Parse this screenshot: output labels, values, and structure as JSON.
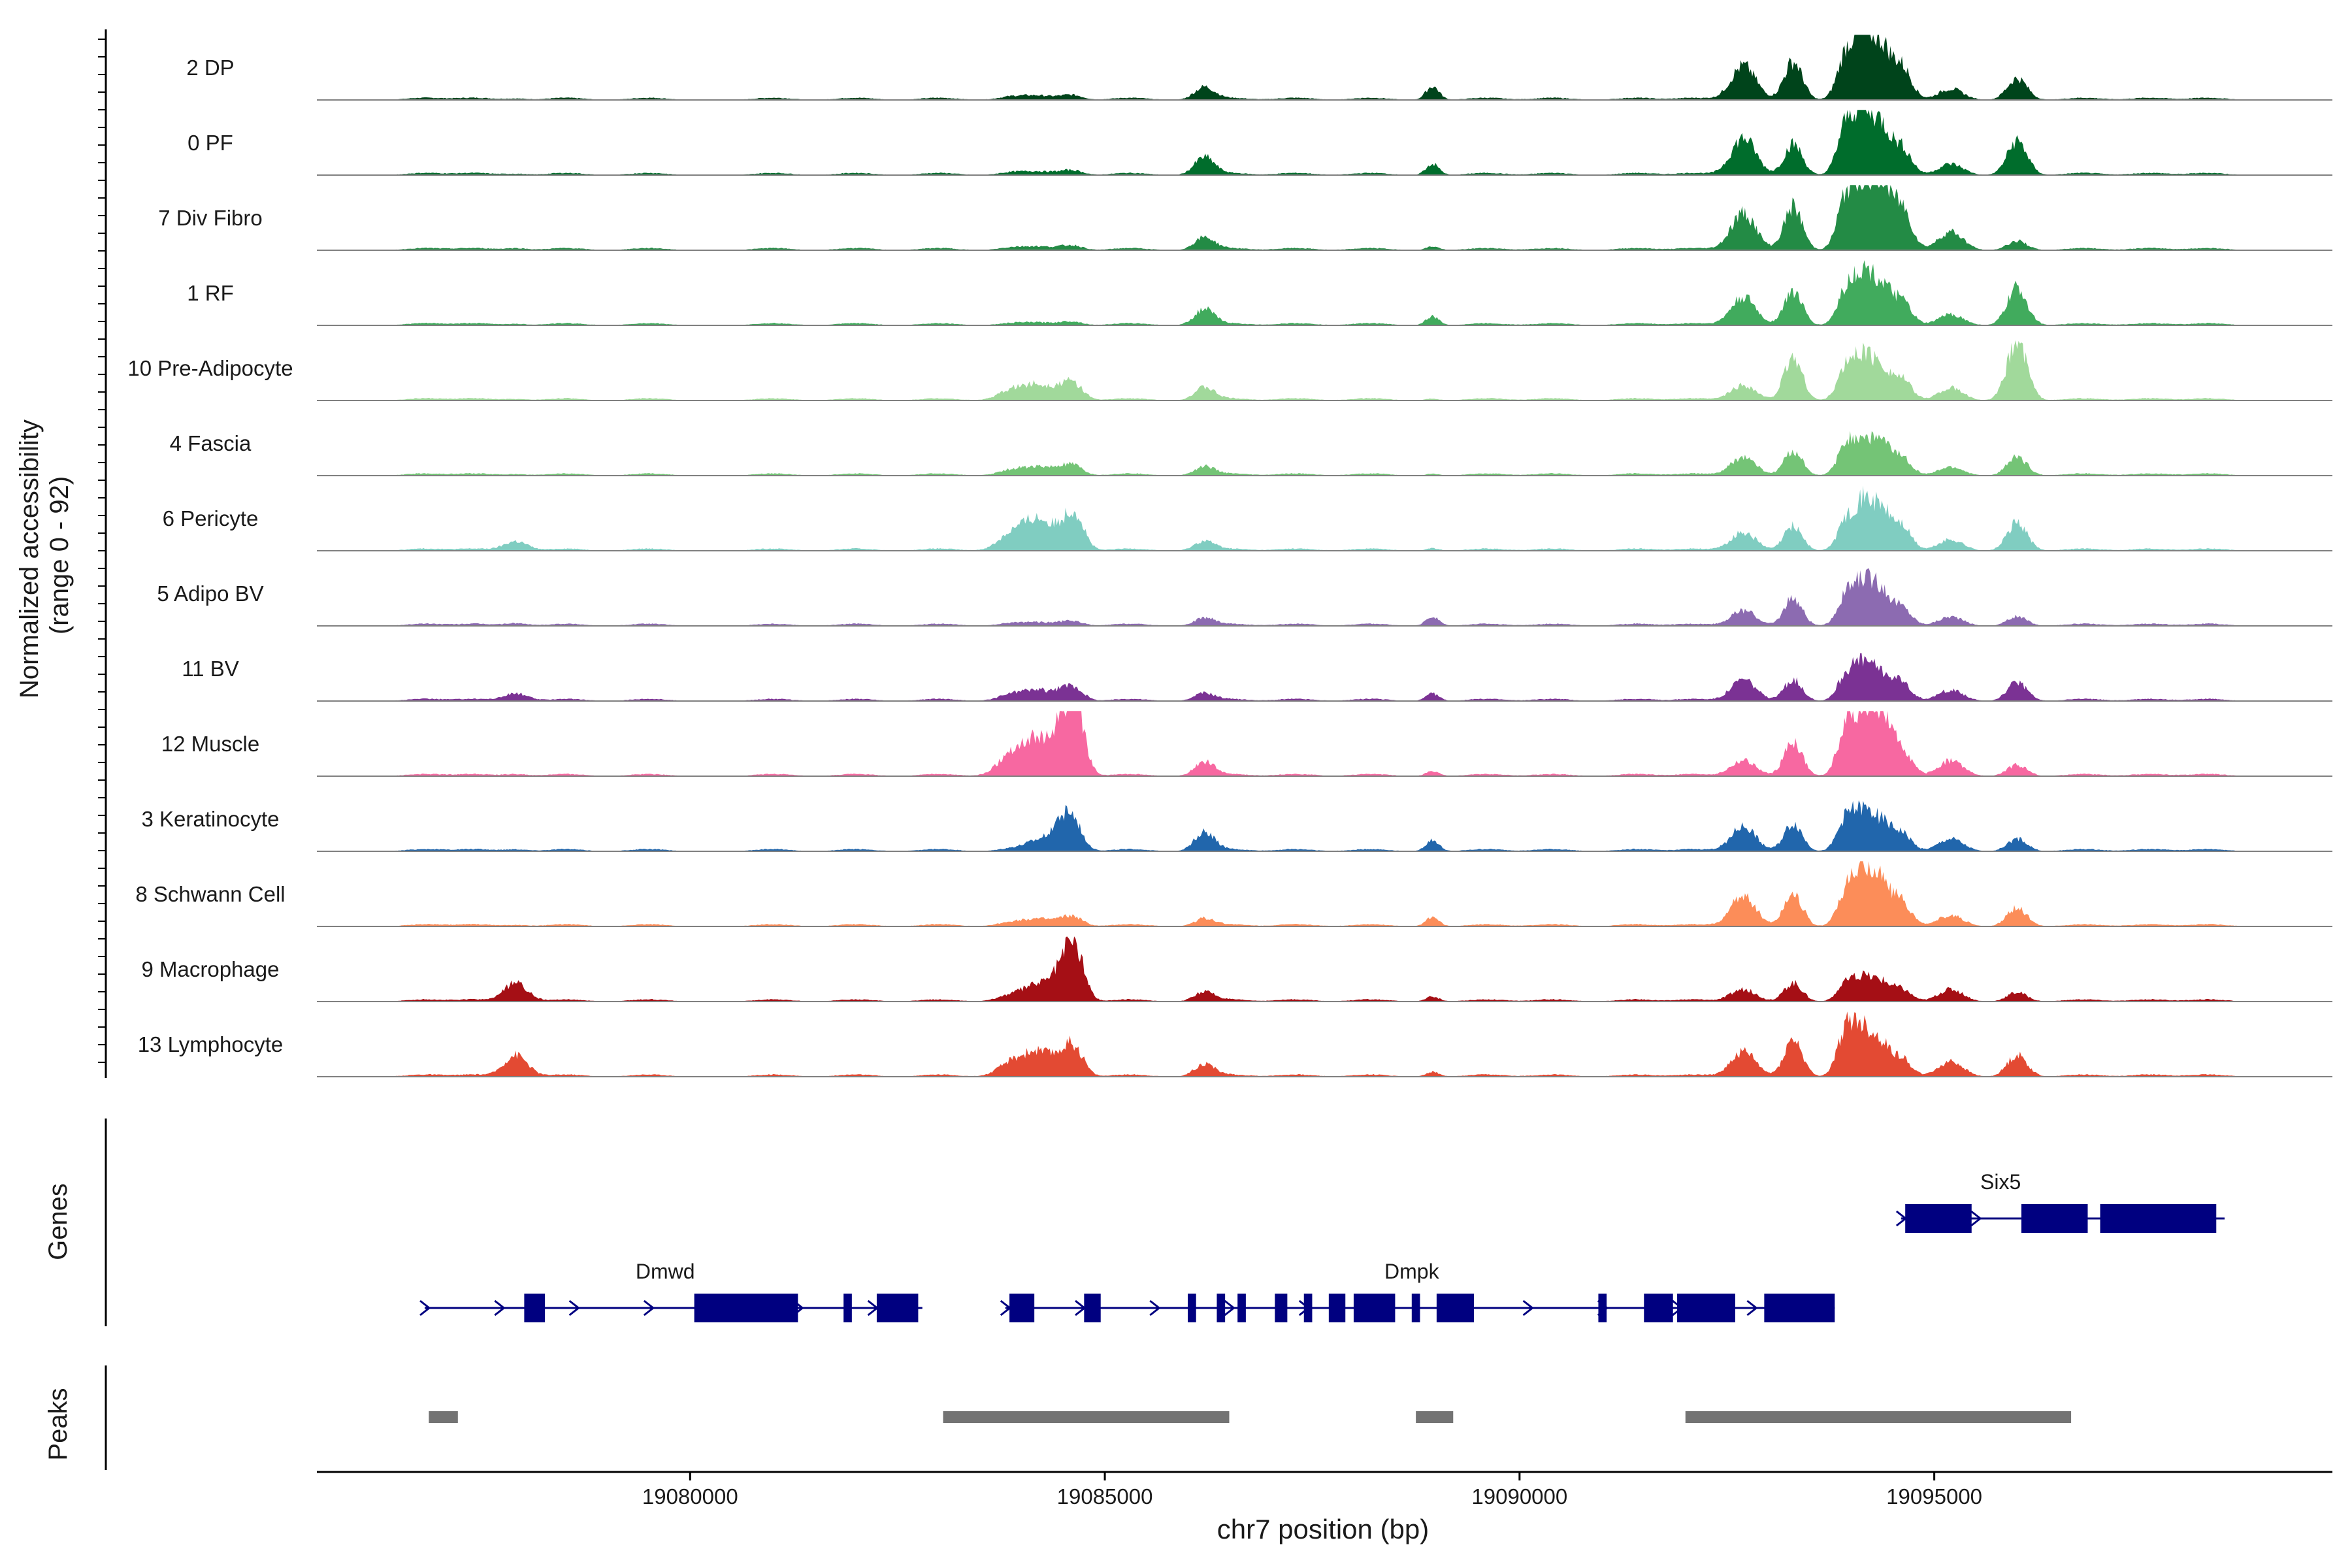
{
  "chart_data": {
    "type": "area",
    "title": "",
    "ylabel_lines": [
      "Normalized accessibility",
      "(range 0 - 92)"
    ],
    "y_range": [
      0,
      92
    ],
    "xlabel": "chr7 position (bp)",
    "xlim": [
      19075500,
      19099800
    ],
    "xticks": [
      19080000,
      19085000,
      19090000,
      19095000
    ],
    "xtick_labels": [
      "19080000",
      "19085000",
      "19090000",
      "19095000"
    ],
    "peak_centers": [
      {
        "pos": 19077900,
        "w": 140
      },
      {
        "pos": 19083900,
        "w": 170
      },
      {
        "pos": 19084200,
        "w": 150
      },
      {
        "pos": 19084500,
        "w": 130
      },
      {
        "pos": 19084650,
        "w": 110
      },
      {
        "pos": 19086200,
        "w": 120
      },
      {
        "pos": 19088950,
        "w": 80
      },
      {
        "pos": 19092700,
        "w": 150
      },
      {
        "pos": 19093300,
        "w": 110
      },
      {
        "pos": 19093950,
        "w": 110
      },
      {
        "pos": 19094150,
        "w": 100
      },
      {
        "pos": 19094350,
        "w": 110
      },
      {
        "pos": 19094600,
        "w": 120
      },
      {
        "pos": 19095200,
        "w": 150
      },
      {
        "pos": 19096000,
        "w": 120
      }
    ],
    "tracks": [
      {
        "name": "2 DP",
        "color": "#00441b",
        "peaks": [
          0.02,
          0.06,
          0.06,
          0.05,
          0.05,
          0.2,
          0.22,
          0.55,
          0.62,
          0.78,
          0.85,
          0.82,
          0.55,
          0.18,
          0.35
        ]
      },
      {
        "name": "0 PF",
        "color": "#006d2c",
        "peaks": [
          0.02,
          0.05,
          0.05,
          0.05,
          0.05,
          0.28,
          0.18,
          0.6,
          0.5,
          0.85,
          0.8,
          0.75,
          0.45,
          0.18,
          0.55
        ]
      },
      {
        "name": "7 Div Fibro",
        "color": "#238b45",
        "peaks": [
          0.03,
          0.05,
          0.05,
          0.05,
          0.05,
          0.2,
          0.06,
          0.6,
          0.7,
          0.9,
          0.85,
          1.0,
          0.7,
          0.3,
          0.15
        ]
      },
      {
        "name": "1 RF",
        "color": "#41ab5d",
        "peaks": [
          0.02,
          0.04,
          0.04,
          0.04,
          0.04,
          0.25,
          0.14,
          0.45,
          0.55,
          0.6,
          0.7,
          0.6,
          0.4,
          0.18,
          0.6
        ]
      },
      {
        "name": "10 Pre-Adipocyte",
        "color": "#a1d99b",
        "peaks": [
          0.02,
          0.18,
          0.22,
          0.2,
          0.18,
          0.2,
          0.03,
          0.25,
          0.7,
          0.55,
          0.6,
          0.5,
          0.35,
          0.2,
          0.95
        ]
      },
      {
        "name": "4 Fascia",
        "color": "#74c476",
        "peaks": [
          0.02,
          0.1,
          0.12,
          0.12,
          0.1,
          0.14,
          0.03,
          0.3,
          0.4,
          0.5,
          0.45,
          0.5,
          0.3,
          0.14,
          0.3
        ]
      },
      {
        "name": "6 Pericyte",
        "color": "#80cdc1",
        "peaks": [
          0.15,
          0.3,
          0.45,
          0.3,
          0.48,
          0.15,
          0.04,
          0.3,
          0.4,
          0.5,
          0.65,
          0.62,
          0.4,
          0.18,
          0.45
        ]
      },
      {
        "name": "5 Adipo BV",
        "color": "#8c6bb1",
        "peaks": [
          0.04,
          0.05,
          0.05,
          0.05,
          0.05,
          0.12,
          0.15,
          0.25,
          0.45,
          0.5,
          0.6,
          0.55,
          0.3,
          0.15,
          0.15
        ]
      },
      {
        "name": "11 BV",
        "color": "#7b3294",
        "peaks": [
          0.12,
          0.12,
          0.15,
          0.15,
          0.15,
          0.12,
          0.12,
          0.35,
          0.35,
          0.45,
          0.5,
          0.42,
          0.3,
          0.18,
          0.3
        ]
      },
      {
        "name": "12 Muscle",
        "color": "#f768a1",
        "peaks": [
          0.03,
          0.4,
          0.5,
          0.7,
          0.9,
          0.22,
          0.08,
          0.25,
          0.55,
          0.8,
          0.8,
          0.95,
          0.45,
          0.25,
          0.18
        ]
      },
      {
        "name": "3 Keratinocyte",
        "color": "#2166ac",
        "peaks": [
          0.03,
          0.05,
          0.15,
          0.5,
          0.25,
          0.3,
          0.18,
          0.4,
          0.45,
          0.55,
          0.5,
          0.45,
          0.3,
          0.2,
          0.2
        ]
      },
      {
        "name": "8 Schwann Cell",
        "color": "#fc8d59",
        "peaks": [
          0.02,
          0.08,
          0.1,
          0.1,
          0.1,
          0.12,
          0.15,
          0.5,
          0.55,
          0.6,
          0.75,
          0.7,
          0.4,
          0.18,
          0.3
        ]
      },
      {
        "name": "9 Macrophage",
        "color": "#a50f15",
        "peaks": [
          0.3,
          0.12,
          0.25,
          0.5,
          0.7,
          0.15,
          0.08,
          0.2,
          0.3,
          0.3,
          0.3,
          0.3,
          0.2,
          0.2,
          0.15
        ]
      },
      {
        "name": "13 Lymphocyte",
        "color": "#e34a33",
        "peaks": [
          0.35,
          0.25,
          0.35,
          0.3,
          0.35,
          0.2,
          0.08,
          0.4,
          0.6,
          0.8,
          0.6,
          0.5,
          0.3,
          0.25,
          0.35
        ]
      }
    ],
    "genes_label": "Genes",
    "genes": [
      {
        "name": "Dmwd",
        "start": 19076800,
        "end": 19082800,
        "row": 2,
        "label_pos": 19079700,
        "exons": [
          [
            19078000,
            19078250
          ],
          [
            19080050,
            19081300
          ],
          [
            19081850,
            19081950
          ],
          [
            19082250,
            19082750
          ]
        ]
      },
      {
        "name": "Dmpk",
        "start": 19083800,
        "end": 19093800,
        "row": 2,
        "label_pos": 19088700,
        "exons": [
          [
            19083850,
            19084150
          ],
          [
            19084750,
            19084950
          ],
          [
            19086000,
            19086100
          ],
          [
            19086350,
            19086450
          ],
          [
            19086600,
            19086700
          ],
          [
            19087050,
            19087200
          ],
          [
            19087400,
            19087500
          ],
          [
            19087700,
            19087900
          ],
          [
            19088000,
            19088500
          ],
          [
            19088700,
            19088800
          ],
          [
            19089000,
            19089450
          ],
          [
            19090950,
            19091050
          ],
          [
            19091500,
            19091850
          ],
          [
            19091900,
            19092600
          ],
          [
            19092950,
            19093800
          ]
        ]
      },
      {
        "name": "Six5",
        "start": 19094600,
        "end": 19098500,
        "row": 1,
        "label_pos": 19095800,
        "exons": [
          [
            19094650,
            19095450
          ],
          [
            19096050,
            19096850
          ],
          [
            19097000,
            19098400
          ]
        ]
      }
    ],
    "peaks_label": "Peaks",
    "peak_regions": [
      [
        19076850,
        19077200
      ],
      [
        19083050,
        19086500
      ],
      [
        19088750,
        19089200
      ],
      [
        19092000,
        19096650
      ]
    ]
  }
}
